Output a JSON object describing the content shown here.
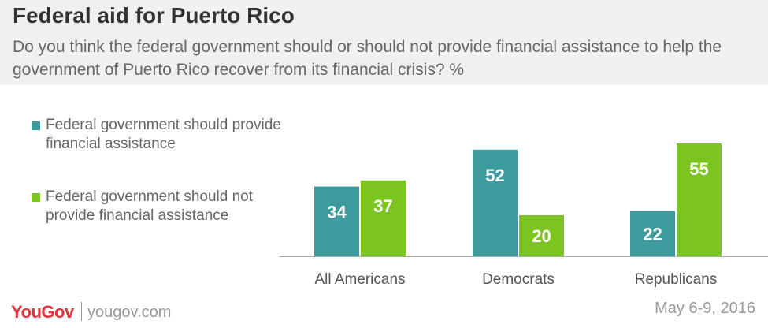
{
  "title": "Federal aid for Puerto Rico",
  "subtitle": "Do you think the federal government should or should not provide financial assistance to help the government of Puerto Rico recover from its financial crisis? %",
  "colors": {
    "provide": "#3e9b9d",
    "not_provide": "#7cc41f"
  },
  "chart_data": {
    "type": "bar",
    "categories": [
      "All Americans",
      "Democrats",
      "Republicans"
    ],
    "series": [
      {
        "name": "Federal government should provide financial assistance",
        "values": [
          34,
          52,
          22
        ]
      },
      {
        "name": "Federal government should not provide financial assistance",
        "values": [
          37,
          20,
          55
        ]
      }
    ],
    "ylim": [
      0,
      60
    ],
    "legend_position": "left",
    "grid": false
  },
  "footer": {
    "brand": "YouGov",
    "site": "yougov.com",
    "date": "May 6-9, 2016"
  }
}
